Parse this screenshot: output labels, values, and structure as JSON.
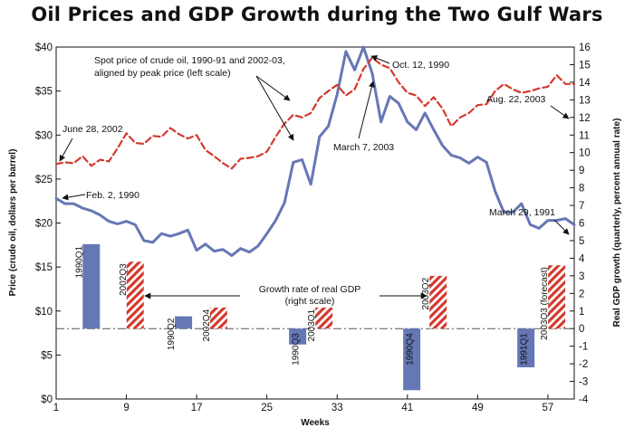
{
  "title": "Oil Prices and GDP Growth during the Two Gulf Wars",
  "chart_data": {
    "type": "line",
    "title": "Oil Prices and GDP Growth during the Two Gulf Wars",
    "xlabel": "Weeks",
    "ylabel_left": "Price (crude oil, dollars per barrel)",
    "ylabel_right": "Real GDP growth (quarterly, percent annual rate)",
    "x_ticks": [
      1,
      9,
      17,
      25,
      33,
      41,
      49,
      57
    ],
    "xlim": [
      1,
      60
    ],
    "left_ticks": [
      "$0",
      "$5",
      "$10",
      "$15",
      "$20",
      "$25",
      "$30",
      "$35",
      "$40"
    ],
    "ylim_left": [
      0,
      40
    ],
    "right_ticks": [
      "-4",
      "-3",
      "-2",
      "-1",
      "0",
      "1",
      "2",
      "3",
      "4",
      "5",
      "6",
      "7",
      "8",
      "9",
      "10",
      "11",
      "12",
      "13",
      "14",
      "15",
      "16"
    ],
    "ylim_right": [
      -4,
      16
    ],
    "series": [
      {
        "name": "1990-91",
        "style": "solid",
        "color": "#6677b5",
        "x": [
          1,
          2,
          3,
          4,
          5,
          6,
          7,
          8,
          9,
          10,
          11,
          12,
          13,
          14,
          15,
          16,
          17,
          18,
          19,
          20,
          21,
          22,
          23,
          24,
          25,
          26,
          27,
          28,
          29,
          30,
          31,
          32,
          33,
          34,
          35,
          36,
          37,
          38,
          39,
          40,
          41,
          42,
          43,
          44,
          45,
          46,
          47,
          48,
          49,
          50,
          51,
          52,
          53,
          54,
          55,
          56,
          57,
          58,
          59,
          60
        ],
        "values": [
          22.8,
          22.2,
          22.2,
          21.7,
          21.4,
          20.9,
          20.2,
          19.9,
          20.2,
          19.8,
          18.0,
          17.8,
          18.8,
          18.5,
          18.8,
          19.2,
          16.9,
          17.6,
          16.8,
          17.0,
          16.3,
          17.1,
          16.7,
          17.4,
          18.8,
          20.3,
          22.3,
          26.9,
          27.2,
          24.4,
          29.8,
          31.0,
          34.6,
          39.5,
          37.4,
          40.0,
          37.0,
          31.5,
          34.4,
          33.6,
          31.5,
          30.6,
          32.5,
          30.6,
          28.8,
          27.7,
          27.4,
          26.8,
          27.5,
          26.9,
          23.6,
          21.2,
          21.2,
          22.2,
          19.8,
          19.4,
          20.3,
          20.3,
          20.5,
          19.8
        ]
      },
      {
        "name": "2002-03",
        "style": "dashed",
        "color": "#d33a2e",
        "x": [
          1,
          2,
          3,
          4,
          5,
          6,
          7,
          8,
          9,
          10,
          11,
          12,
          13,
          14,
          15,
          16,
          17,
          18,
          19,
          20,
          21,
          22,
          23,
          24,
          25,
          26,
          27,
          28,
          29,
          30,
          31,
          32,
          33,
          34,
          35,
          36,
          37,
          38,
          39,
          40,
          41,
          42,
          43,
          44,
          45,
          46,
          47,
          48,
          49,
          50,
          51,
          52,
          53,
          54,
          55,
          56,
          57,
          58,
          59,
          60
        ],
        "values": [
          26.7,
          26.9,
          26.8,
          27.6,
          26.5,
          27.2,
          27.0,
          28.5,
          30.2,
          29.1,
          29.0,
          29.9,
          29.8,
          30.8,
          30.1,
          29.6,
          30.0,
          28.3,
          27.6,
          26.8,
          26.2,
          27.3,
          27.4,
          27.6,
          28.1,
          29.8,
          31.3,
          32.3,
          32.0,
          32.5,
          34.2,
          35.0,
          35.7,
          34.5,
          35.2,
          37.5,
          38.8,
          38.0,
          37.6,
          36.0,
          34.8,
          34.5,
          33.3,
          34.3,
          33.0,
          31.0,
          32.0,
          32.5,
          33.4,
          33.5,
          35.0,
          35.8,
          35.2,
          34.8,
          35.0,
          35.3,
          35.5,
          36.8,
          35.8,
          35.8
        ]
      }
    ],
    "bars": {
      "name": "Growth rate of real GDP (right scale)",
      "items": [
        {
          "label": "1990Q1",
          "x": 5.0,
          "value": 4.8,
          "series": "1990-91"
        },
        {
          "label": "2002Q3",
          "x": 10.0,
          "value": 3.8,
          "series": "2002-03"
        },
        {
          "label": "1990Q2",
          "x": 15.5,
          "value": 0.7,
          "series": "1990-91"
        },
        {
          "label": "2002Q4",
          "x": 19.5,
          "value": 1.2,
          "series": "2002-03"
        },
        {
          "label": "1990Q3",
          "x": 28.5,
          "value": -0.9,
          "series": "1990-91"
        },
        {
          "label": "2003Q1",
          "x": 31.5,
          "value": 1.2,
          "series": "2002-03"
        },
        {
          "label": "1990Q4",
          "x": 41.5,
          "value": -3.5,
          "series": "1990-91"
        },
        {
          "label": "2003Q2",
          "x": 44.5,
          "value": 3.0,
          "series": "2002-03"
        },
        {
          "label": "1991Q1",
          "x": 54.5,
          "value": -2.2,
          "series": "1990-91"
        },
        {
          "label": "2003Q3 (forecast)",
          "x": 58.0,
          "value": 3.6,
          "series": "2002-03"
        }
      ]
    },
    "annotations": {
      "spot_line1": "Spot price of crude oil, 1990-91 and 2002-03,",
      "spot_line2": "aligned by peak price (left scale)",
      "gdp_line1": "Growth rate of real GDP",
      "gdp_line2": "(right scale)",
      "june": "June 28, 2002",
      "feb": "Feb. 2, 1990",
      "oct": "Oct. 12, 1990",
      "mar7": "March 7, 2003",
      "aug": "Aug. 22, 2003",
      "mar29": "March 29, 1991"
    },
    "colors": {
      "line_1990": "#6677b5",
      "bar_1990": "#6677b5",
      "line_2002": "#d33a2e",
      "bar_2002": "#d33a2e",
      "zero_line": "#555555"
    }
  }
}
